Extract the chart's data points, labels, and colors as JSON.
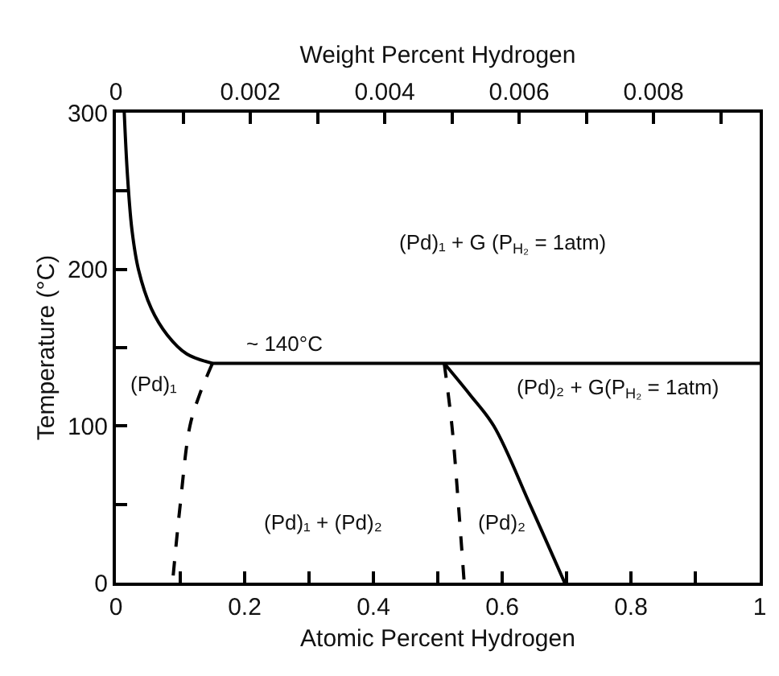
{
  "chart_data": {
    "type": "line",
    "xlabel": "Atomic Percent Hydrogen",
    "x2label": "Weight Percent Hydrogen",
    "ylabel": "Temperature (°C)",
    "xlim": [
      0,
      1
    ],
    "xticks": [
      0,
      {
        "value": 0.1,
        "label": null
      },
      0.2,
      {
        "value": 0.3,
        "label": null
      },
      0.4,
      {
        "value": 0.5,
        "label": null
      },
      0.6,
      {
        "value": 0.7,
        "label": null
      },
      0.8,
      {
        "value": 0.9,
        "label": null
      },
      1
    ],
    "x2lim": [
      0,
      0.00958
    ],
    "x2ticks": [
      0,
      {
        "value": 0.001,
        "label": null
      },
      0.002,
      {
        "value": 0.003,
        "label": null
      },
      0.004,
      {
        "value": 0.005,
        "label": null
      },
      0.006,
      {
        "value": 0.007,
        "label": null
      },
      0.008,
      {
        "value": 0.009,
        "label": null
      }
    ],
    "ylim": [
      0,
      300
    ],
    "yticks": [
      0,
      {
        "value": 50,
        "label": null
      },
      100,
      {
        "value": 150,
        "label": null
      },
      200,
      {
        "value": 250,
        "label": null
      },
      300
    ],
    "grid": false,
    "marker": "none",
    "series": [
      {
        "color": "#000000",
        "line_style": "solid",
        "x": [
          0.013,
          0.018,
          0.025,
          0.035,
          0.055,
          0.08,
          0.11,
          0.15
        ],
        "values": [
          300,
          260,
          225,
          200,
          175,
          158,
          146,
          140
        ]
      },
      {
        "color": "#000000",
        "line_style": "dashed",
        "x": [
          0.15,
          0.13,
          0.115,
          0.1,
          0.088
        ],
        "values": [
          140,
          120,
          100,
          50,
          0
        ]
      },
      {
        "color": "#000000",
        "line_style": "solid",
        "x": [
          0.15,
          1
        ],
        "values": [
          140,
          140
        ]
      },
      {
        "color": "#000000",
        "line_style": "dashed",
        "x": [
          0.51,
          0.522,
          0.532,
          0.541
        ],
        "values": [
          140,
          100,
          50,
          0
        ]
      },
      {
        "color": "#000000",
        "line_style": "solid",
        "x": [
          0.51,
          0.55,
          0.587,
          0.643,
          0.697
        ],
        "values": [
          140,
          120,
          100,
          50,
          0
        ]
      }
    ],
    "annotations": [
      "(Pd)₁ + G (P$_{H₂}$ = 1atm)",
      "~ 140°C",
      "(Pd)₁",
      "(Pd)₂ + G(P$_{H₂}$ = 1atm)",
      "(Pd)₁ + (Pd)₂",
      "(Pd)₂"
    ]
  }
}
